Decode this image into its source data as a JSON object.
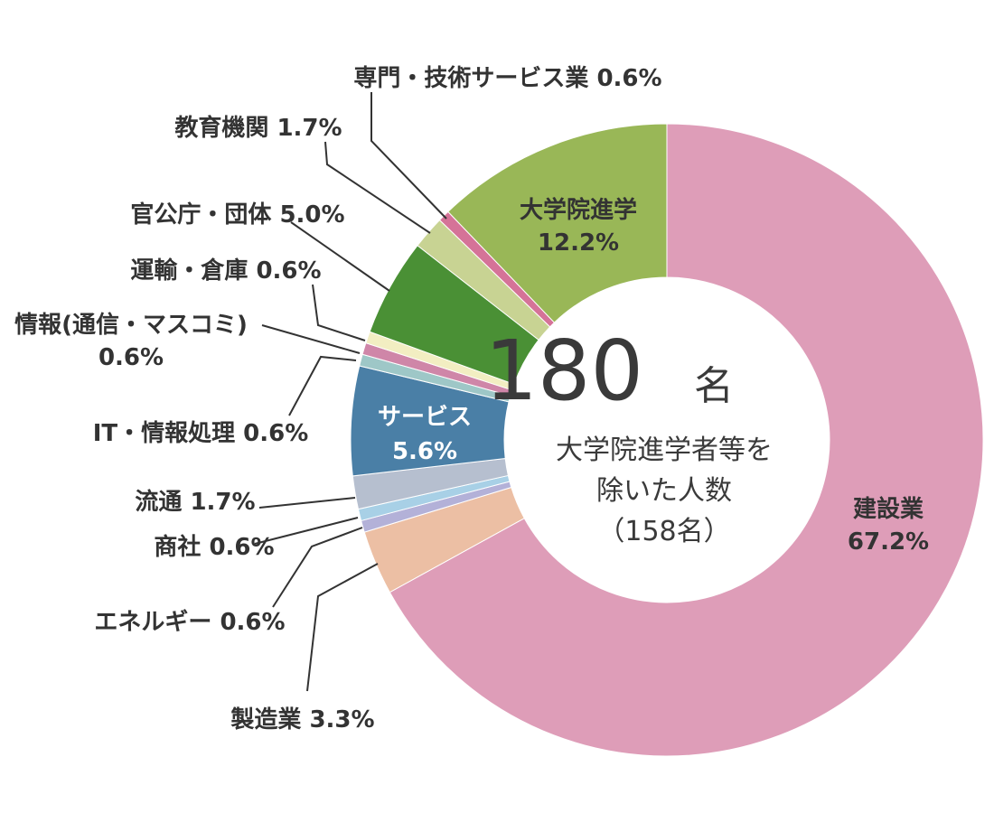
{
  "chart_data": {
    "type": "pie",
    "donut": true,
    "center": {
      "total": "180",
      "unit": "名",
      "note_lines": [
        "大学院進学者等を",
        "除いた人数",
        "（158名）"
      ]
    },
    "slices": [
      {
        "name": "建設業",
        "value": 67.2,
        "color": "#de9db8",
        "label_lines": [
          "建設業",
          "67.2%"
        ],
        "label_style": "inside-dark"
      },
      {
        "name": "製造業",
        "value": 3.3,
        "color": "#ecbfa4",
        "label_lines": [
          "製造業 3.3%"
        ],
        "label_style": "outside"
      },
      {
        "name": "エネルギー",
        "value": 0.6,
        "color": "#b3b1d8",
        "label_lines": [
          "エネルギー 0.6%"
        ],
        "label_style": "outside"
      },
      {
        "name": "商社",
        "value": 0.6,
        "color": "#a8d0e6",
        "label_lines": [
          "商社 0.6%"
        ],
        "label_style": "outside"
      },
      {
        "name": "流通",
        "value": 1.7,
        "color": "#b6bfcf",
        "label_lines": [
          "流通 1.7%"
        ],
        "label_style": "outside"
      },
      {
        "name": "サービス",
        "value": 5.6,
        "color": "#4a7fa6",
        "label_lines": [
          "サービス",
          "5.6%"
        ],
        "label_style": "inside-light"
      },
      {
        "name": "IT・情報処理",
        "value": 0.6,
        "color": "#9ec7c7",
        "label_lines": [
          "IT・情報処理 0.6%"
        ],
        "label_style": "outside"
      },
      {
        "name": "情報(通信・マスコミ)",
        "value": 0.6,
        "color": "#cf86a8",
        "label_lines": [
          "情報(通信・マスコミ)",
          "0.6%"
        ],
        "label_style": "outside"
      },
      {
        "name": "運輸・倉庫",
        "value": 0.6,
        "color": "#f2eec2",
        "label_lines": [
          "運輸・倉庫 0.6%"
        ],
        "label_style": "outside"
      },
      {
        "name": "官公庁・団体",
        "value": 5.0,
        "color": "#4a9035",
        "label_lines": [
          "官公庁・団体 5.0%"
        ],
        "label_style": "outside"
      },
      {
        "name": "教育機関",
        "value": 1.7,
        "color": "#c8d393",
        "label_lines": [
          "教育機関 1.7%"
        ],
        "label_style": "outside"
      },
      {
        "name": "専門・技術サービス業",
        "value": 0.6,
        "color": "#d57398",
        "label_lines": [
          "専門・技術サービス業 0.6%"
        ],
        "label_style": "outside"
      },
      {
        "name": "大学院進学",
        "value": 12.2,
        "color": "#99b757",
        "label_lines": [
          "大学院進学",
          "12.2%"
        ],
        "label_style": "inside-dark"
      }
    ]
  }
}
